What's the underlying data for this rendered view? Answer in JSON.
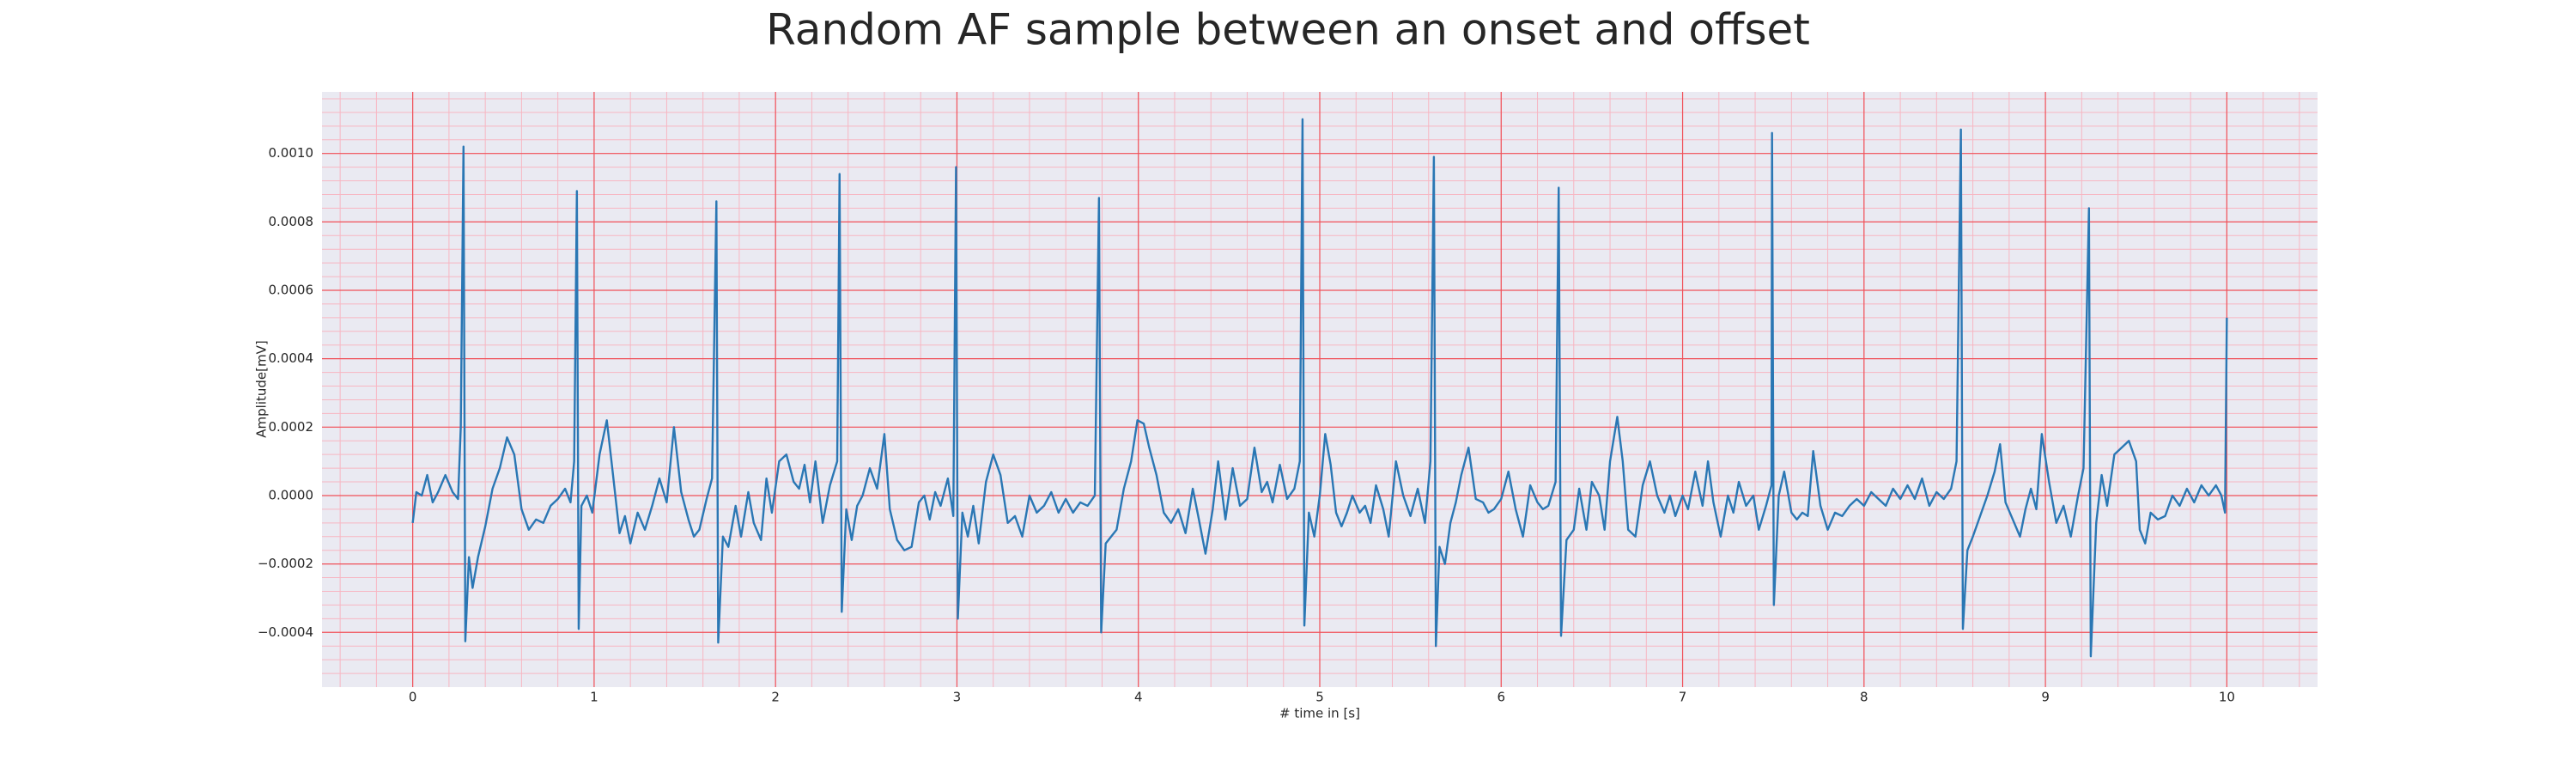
{
  "chart_data": {
    "type": "line",
    "title": "Random AF sample between an onset and offset",
    "xlabel": "# time in [s]",
    "ylabel": "Amplitude[mV]",
    "color": "#2a77b4",
    "grid": true,
    "minor_grid": true,
    "xlim": [
      -0.5,
      10.5
    ],
    "ylim": [
      -0.00056,
      0.00118
    ],
    "xticks": [
      0,
      1,
      2,
      3,
      4,
      5,
      6,
      7,
      8,
      9,
      10
    ],
    "yticks": [
      {
        "value": -0.0004,
        "label": "−0.0004"
      },
      {
        "value": -0.0002,
        "label": "−0.0002"
      },
      {
        "value": 0,
        "label": "0.0000"
      },
      {
        "value": 0.0002,
        "label": "0.0002"
      },
      {
        "value": 0.0004,
        "label": "0.0004"
      },
      {
        "value": 0.0006,
        "label": "0.0006"
      },
      {
        "value": 0.0008,
        "label": "0.0008"
      },
      {
        "value": 0.001,
        "label": "0.0010"
      }
    ],
    "x": [
      0,
      0.02,
      0.05,
      0.08,
      0.11,
      0.14,
      0.18,
      0.22,
      0.25,
      0.265,
      0.28,
      0.29,
      0.31,
      0.33,
      0.36,
      0.4,
      0.44,
      0.48,
      0.52,
      0.56,
      0.6,
      0.64,
      0.68,
      0.72,
      0.76,
      0.8,
      0.84,
      0.87,
      0.89,
      0.905,
      0.915,
      0.93,
      0.96,
      0.99,
      1.03,
      1.07,
      1.1,
      1.14,
      1.17,
      1.2,
      1.24,
      1.28,
      1.32,
      1.36,
      1.4,
      1.44,
      1.48,
      1.52,
      1.55,
      1.58,
      1.62,
      1.65,
      1.674,
      1.684,
      1.71,
      1.74,
      1.78,
      1.81,
      1.85,
      1.88,
      1.92,
      1.95,
      1.98,
      2.02,
      2.06,
      2.1,
      2.13,
      2.16,
      2.19,
      2.22,
      2.26,
      2.3,
      2.34,
      2.353,
      2.365,
      2.39,
      2.42,
      2.45,
      2.48,
      2.52,
      2.56,
      2.6,
      2.63,
      2.67,
      2.71,
      2.75,
      2.79,
      2.82,
      2.85,
      2.88,
      2.91,
      2.95,
      2.98,
      2.995,
      3.005,
      3.03,
      3.06,
      3.09,
      3.12,
      3.16,
      3.2,
      3.24,
      3.28,
      3.32,
      3.36,
      3.4,
      3.44,
      3.48,
      3.52,
      3.56,
      3.6,
      3.64,
      3.68,
      3.72,
      3.76,
      3.783,
      3.795,
      3.82,
      3.85,
      3.88,
      3.92,
      3.96,
      3.995,
      4.03,
      4.06,
      4.1,
      4.14,
      4.18,
      4.22,
      4.26,
      4.3,
      4.33,
      4.37,
      4.41,
      4.44,
      4.48,
      4.52,
      4.56,
      4.6,
      4.64,
      4.68,
      4.71,
      4.74,
      4.78,
      4.82,
      4.86,
      4.89,
      4.905,
      4.915,
      4.94,
      4.97,
      5.0,
      5.03,
      5.06,
      5.09,
      5.12,
      5.15,
      5.18,
      5.22,
      5.25,
      5.28,
      5.31,
      5.35,
      5.38,
      5.42,
      5.46,
      5.5,
      5.54,
      5.58,
      5.61,
      5.629,
      5.64,
      5.66,
      5.69,
      5.72,
      5.75,
      5.78,
      5.82,
      5.86,
      5.9,
      5.93,
      5.96,
      6.0,
      6.04,
      6.08,
      6.12,
      6.16,
      6.2,
      6.23,
      6.26,
      6.3,
      6.317,
      6.33,
      6.36,
      6.4,
      6.43,
      6.47,
      6.5,
      6.54,
      6.57,
      6.6,
      6.64,
      6.67,
      6.7,
      6.74,
      6.78,
      6.82,
      6.86,
      6.9,
      6.93,
      6.96,
      7.0,
      7.03,
      7.07,
      7.11,
      7.14,
      7.17,
      7.21,
      7.25,
      7.28,
      7.31,
      7.35,
      7.39,
      7.42,
      7.46,
      7.49,
      7.493,
      7.503,
      7.53,
      7.56,
      7.6,
      7.63,
      7.66,
      7.69,
      7.72,
      7.76,
      7.8,
      7.84,
      7.88,
      7.92,
      7.96,
      8.0,
      8.04,
      8.08,
      8.12,
      8.16,
      8.2,
      8.24,
      8.28,
      8.32,
      8.36,
      8.4,
      8.44,
      8.48,
      8.51,
      8.534,
      8.545,
      8.57,
      8.6,
      8.64,
      8.68,
      8.72,
      8.75,
      8.78,
      8.82,
      8.86,
      8.89,
      8.92,
      8.95,
      8.98,
      9.02,
      9.06,
      9.1,
      9.14,
      9.18,
      9.21,
      9.24,
      9.25,
      9.28,
      9.31,
      9.34,
      9.38,
      9.42,
      9.46,
      9.5,
      9.52,
      9.55,
      9.58,
      9.62,
      9.66,
      9.7,
      9.74,
      9.78,
      9.82,
      9.86,
      9.9,
      9.94,
      9.97,
      9.99,
      10.0
    ],
    "values": [
      -8e-05,
      1e-05,
      0.0,
      6e-05,
      -2e-05,
      1e-05,
      6e-05,
      1e-05,
      -1e-05,
      0.0002,
      0.00102,
      -0.000426,
      -0.00018,
      -0.00027,
      -0.00018,
      -9e-05,
      2e-05,
      8e-05,
      0.00017,
      0.00012,
      -4e-05,
      -0.0001,
      -7e-05,
      -8e-05,
      -3e-05,
      -1e-05,
      2e-05,
      -2e-05,
      0.0001,
      0.00089,
      -0.00039,
      -3e-05,
      0.0,
      -5e-05,
      0.00012,
      0.00022,
      8e-05,
      -0.00011,
      -6e-05,
      -0.00014,
      -5e-05,
      -0.0001,
      -3e-05,
      5e-05,
      -2e-05,
      0.0002,
      1e-05,
      -7e-05,
      -0.00012,
      -0.0001,
      -1e-05,
      5e-05,
      0.00086,
      -0.00043,
      -0.00012,
      -0.00015,
      -3e-05,
      -0.00012,
      1e-05,
      -8e-05,
      -0.00013,
      5e-05,
      -5e-05,
      0.0001,
      0.00012,
      4e-05,
      2e-05,
      9e-05,
      -2e-05,
      0.0001,
      -8e-05,
      3e-05,
      0.0001,
      0.00094,
      -0.00034,
      -4e-05,
      -0.00013,
      -3e-05,
      0.0,
      8e-05,
      2e-05,
      0.00018,
      -4e-05,
      -0.00013,
      -0.00016,
      -0.00015,
      -2e-05,
      0.0,
      -7e-05,
      1e-05,
      -3e-05,
      5e-05,
      -6e-05,
      0.00096,
      -0.00036,
      -5e-05,
      -0.00012,
      -3e-05,
      -0.00014,
      4e-05,
      0.00012,
      6e-05,
      -8e-05,
      -6e-05,
      -0.00012,
      0.0,
      -5e-05,
      -3e-05,
      1e-05,
      -5e-05,
      -1e-05,
      -5e-05,
      -2e-05,
      -3e-05,
      0.0,
      0.00087,
      -0.0004,
      -0.00014,
      -0.00012,
      -0.0001,
      2e-05,
      0.0001,
      0.00022,
      0.00021,
      0.00014,
      6e-05,
      -5e-05,
      -8e-05,
      -4e-05,
      -0.00011,
      2e-05,
      -6e-05,
      -0.00017,
      -4e-05,
      0.0001,
      -7e-05,
      8e-05,
      -3e-05,
      -1e-05,
      0.00014,
      1e-05,
      4e-05,
      -2e-05,
      9e-05,
      -1e-05,
      2e-05,
      0.0001,
      0.0011,
      -0.00038,
      -5e-05,
      -0.00012,
      0.0,
      0.00018,
      9e-05,
      -5e-05,
      -9e-05,
      -5e-05,
      0.0,
      -5e-05,
      -3e-05,
      -8e-05,
      3e-05,
      -4e-05,
      -0.00012,
      0.0001,
      0.0,
      -6e-05,
      2e-05,
      -8e-05,
      0.0001,
      0.00099,
      -0.00044,
      -0.00015,
      -0.0002,
      -8e-05,
      -2e-05,
      6e-05,
      0.00014,
      -1e-05,
      -2e-05,
      -5e-05,
      -4e-05,
      -1e-05,
      7e-05,
      -4e-05,
      -0.00012,
      3e-05,
      -2e-05,
      -4e-05,
      -3e-05,
      4e-05,
      0.0009,
      -0.00041,
      -0.00013,
      -0.0001,
      2e-05,
      -0.0001,
      4e-05,
      0.0,
      -0.0001,
      0.0001,
      0.00023,
      0.0001,
      -0.0001,
      -0.00012,
      3e-05,
      0.0001,
      0.0,
      -5e-05,
      0.0,
      -6e-05,
      0.0,
      -4e-05,
      7e-05,
      -3e-05,
      0.0001,
      -2e-05,
      -0.00012,
      0.0,
      -5e-05,
      4e-05,
      -3e-05,
      0.0,
      -0.0001,
      -3e-05,
      3e-05,
      0.00106,
      -0.00032,
      0.0,
      7e-05,
      -5e-05,
      -7e-05,
      -5e-05,
      -6e-05,
      0.00013,
      -3e-05,
      -0.0001,
      -5e-05,
      -6e-05,
      -3e-05,
      -1e-05,
      -3e-05,
      1e-05,
      -1e-05,
      -3e-05,
      2e-05,
      -1e-05,
      3e-05,
      -1e-05,
      5e-05,
      -3e-05,
      1e-05,
      -1e-05,
      2e-05,
      0.0001,
      0.00107,
      -0.00039,
      -0.00016,
      -0.00012,
      -6e-05,
      0.0,
      7e-05,
      0.00015,
      -2e-05,
      -7e-05,
      -0.00012,
      -4e-05,
      2e-05,
      -4e-05,
      0.00018,
      4e-05,
      -8e-05,
      -3e-05,
      -0.00012,
      0.0,
      8e-05,
      0.00084,
      -0.00047,
      -8e-05,
      6e-05,
      -3e-05,
      0.00012,
      0.00014,
      0.00016,
      0.0001,
      -0.0001,
      -0.00014,
      -5e-05,
      -7e-05,
      -6e-05,
      0.0,
      -3e-05,
      2e-05,
      -2e-05,
      3e-05,
      0.0,
      3e-05,
      0.0,
      -5e-05,
      0.00052
    ]
  }
}
